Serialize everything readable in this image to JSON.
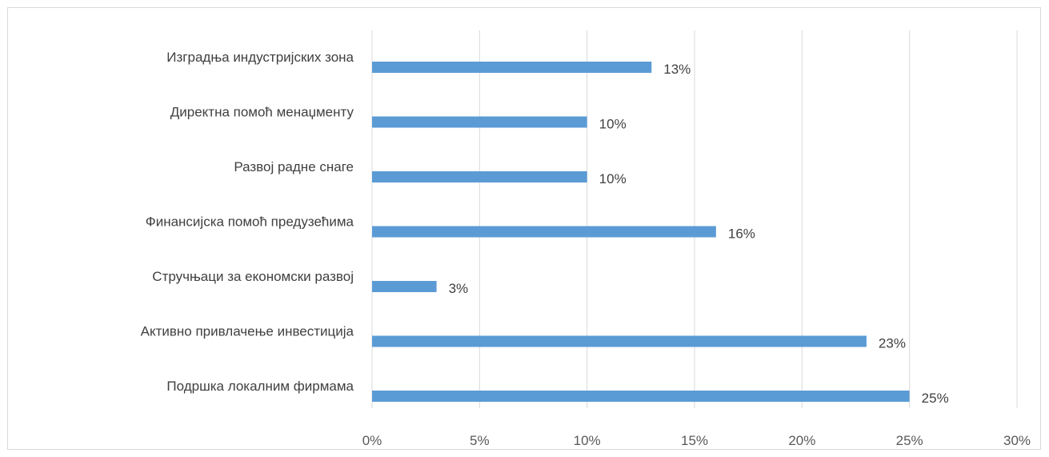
{
  "chart_data": {
    "type": "bar",
    "orientation": "horizontal",
    "categories": [
      "Изградња индустријских зона",
      "Директна помоћ менаџменту",
      "Развој радне снаге",
      "Финансијска помоћ предузећима",
      "Стручњаци за економски развој",
      "Активно привлачење инвестиција",
      "Подршка локалним фирмама"
    ],
    "values": [
      13,
      10,
      10,
      16,
      3,
      23,
      25
    ],
    "data_labels": [
      "13%",
      "10%",
      "10%",
      "16%",
      "3%",
      "23%",
      "25%"
    ],
    "xlim": [
      0,
      30
    ],
    "x_ticks": [
      0,
      5,
      10,
      15,
      20,
      25,
      30
    ],
    "x_tick_labels": [
      "0%",
      "5%",
      "10%",
      "15%",
      "20%",
      "25%",
      "30%"
    ],
    "grid": "vertical",
    "legend": "none",
    "title": "",
    "xlabel": "",
    "ylabel": "",
    "colors": {
      "bar": "#5b9bd5",
      "grid": "#d9d9d9",
      "text": "#404040",
      "tick_text": "#595959"
    }
  }
}
